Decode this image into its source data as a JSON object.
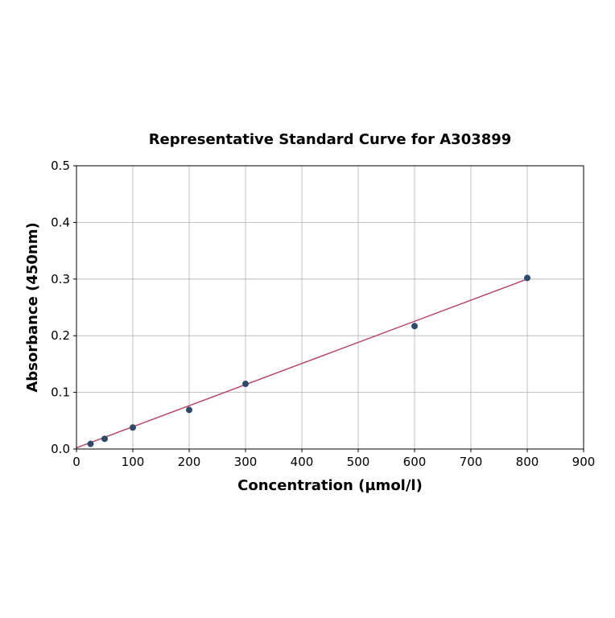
{
  "chart_data": {
    "type": "scatter",
    "title": "Representative Standard Curve for A303899",
    "xlabel": "Concentration (µmol/l)",
    "ylabel": "Absorbance (450nm)",
    "xlim": [
      0,
      900
    ],
    "ylim": [
      0,
      0.5
    ],
    "xticks": [
      0,
      100,
      200,
      300,
      400,
      500,
      600,
      700,
      800,
      900
    ],
    "yticks": [
      "0.0",
      "0.1",
      "0.2",
      "0.3",
      "0.4",
      "0.5"
    ],
    "grid": true,
    "points": {
      "x": [
        25,
        50,
        100,
        200,
        300,
        600,
        800
      ],
      "y": [
        0.009,
        0.018,
        0.038,
        0.069,
        0.115,
        0.217,
        0.302
      ]
    },
    "fit_line": {
      "x": [
        0,
        800
      ],
      "y": [
        0.002,
        0.3
      ]
    },
    "colors": {
      "points": "#2e4a6b",
      "line": "#b5496b",
      "grid": "#b0b0b0"
    }
  }
}
